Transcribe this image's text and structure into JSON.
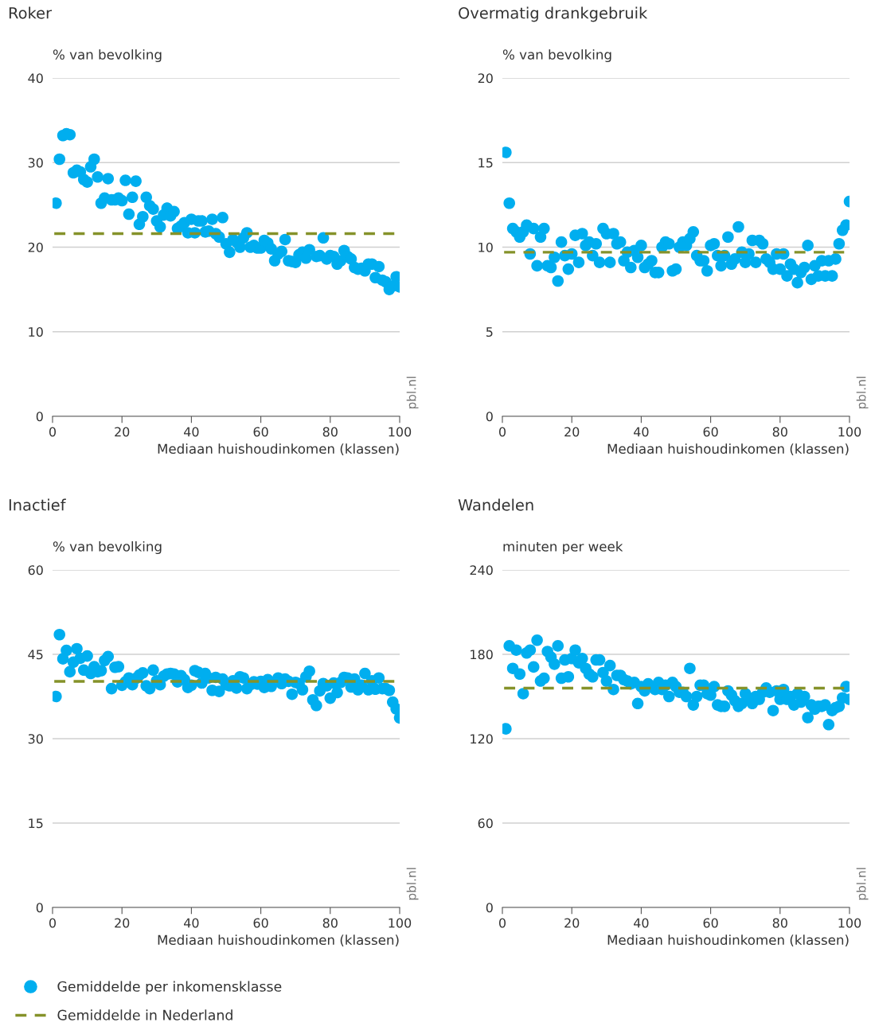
{
  "chart_data": [
    {
      "type": "scatter",
      "title": "Roker",
      "ylabel": "% van bevolking",
      "xlabel": "Mediaan huishoudinkomen (klassen)",
      "xlim": [
        0,
        100
      ],
      "xticks": [
        0,
        20,
        40,
        60,
        80,
        100
      ],
      "ylim": [
        0,
        40
      ],
      "yticks": [
        0,
        10,
        20,
        30,
        40
      ],
      "grid": "y",
      "marker": "circle",
      "legend": "bottom",
      "x": [
        1,
        2,
        3,
        4,
        5,
        6,
        7,
        8,
        9,
        10,
        11,
        12,
        13,
        14,
        15,
        16,
        17,
        18,
        19,
        20,
        21,
        22,
        23,
        24,
        25,
        26,
        27,
        28,
        29,
        30,
        31,
        32,
        33,
        34,
        35,
        36,
        37,
        38,
        39,
        40,
        41,
        42,
        43,
        44,
        45,
        46,
        47,
        48,
        49,
        50,
        51,
        52,
        53,
        54,
        55,
        56,
        57,
        58,
        59,
        60,
        61,
        62,
        63,
        64,
        65,
        66,
        67,
        68,
        69,
        70,
        71,
        72,
        73,
        74,
        75,
        76,
        77,
        78,
        79,
        80,
        81,
        82,
        83,
        84,
        85,
        86,
        87,
        88,
        89,
        90,
        91,
        92,
        93,
        94,
        95,
        96,
        97,
        98,
        99,
        100
      ],
      "series": [
        {
          "name": "Gemiddelde per inkomensklasse",
          "color": "#00aeef",
          "values": [
            25.2,
            30.4,
            33.2,
            33.4,
            33.3,
            28.8,
            29.1,
            28.9,
            28.0,
            27.7,
            29.5,
            30.4,
            28.3,
            25.2,
            25.8,
            28.1,
            25.6,
            25.6,
            25.8,
            25.5,
            27.9,
            23.9,
            25.9,
            27.8,
            22.7,
            23.6,
            25.9,
            24.9,
            24.5,
            23.1,
            22.4,
            23.8,
            24.6,
            23.7,
            24.2,
            22.2,
            22.5,
            22.9,
            21.7,
            23.3,
            21.7,
            23.1,
            23.1,
            21.8,
            21.9,
            23.3,
            21.6,
            21.2,
            23.5,
            20.4,
            19.4,
            20.9,
            20.6,
            20.0,
            21.1,
            21.7,
            20.0,
            20.2,
            19.9,
            19.9,
            20.8,
            20.5,
            19.8,
            18.4,
            19.2,
            19.5,
            20.9,
            18.4,
            18.3,
            18.2,
            19.1,
            19.4,
            18.7,
            19.7,
            null,
            18.9,
            19.0,
            21.1,
            18.6,
            19.0,
            18.9,
            18.0,
            18.4,
            19.6,
            18.9,
            18.6,
            17.6,
            17.4,
            17.5,
            17.2,
            18.0,
            18.0,
            16.4,
            17.7,
            16.1,
            15.9,
            15.0,
            15.4,
            16.5,
            15.3
          ]
        }
      ],
      "ref_lines": [
        {
          "axis": "y",
          "value": 21.6,
          "label": "Gemiddelde in Nederland",
          "color": "#85922a",
          "line_style": "dashed"
        }
      ],
      "annotations": [
        "pbl.nl"
      ]
    },
    {
      "type": "scatter",
      "title": "Overmatig drankgebruik",
      "ylabel": "% van bevolking",
      "xlabel": "Mediaan huishoudinkomen (klassen)",
      "xlim": [
        0,
        100
      ],
      "xticks": [
        0,
        20,
        40,
        60,
        80,
        100
      ],
      "ylim": [
        0,
        20
      ],
      "yticks": [
        0,
        5,
        10,
        15,
        20
      ],
      "grid": "y",
      "marker": "circle",
      "x": [
        1,
        2,
        3,
        4,
        5,
        6,
        7,
        8,
        9,
        10,
        11,
        12,
        13,
        14,
        15,
        16,
        17,
        18,
        19,
        20,
        21,
        22,
        23,
        24,
        25,
        26,
        27,
        28,
        29,
        30,
        31,
        32,
        33,
        34,
        35,
        36,
        37,
        38,
        39,
        40,
        41,
        42,
        43,
        44,
        45,
        46,
        47,
        48,
        49,
        50,
        51,
        52,
        53,
        54,
        55,
        56,
        57,
        58,
        59,
        60,
        61,
        62,
        63,
        64,
        65,
        66,
        67,
        68,
        69,
        70,
        71,
        72,
        73,
        74,
        75,
        76,
        77,
        78,
        79,
        80,
        81,
        82,
        83,
        84,
        85,
        86,
        87,
        88,
        89,
        90,
        91,
        92,
        93,
        94,
        95,
        96,
        97,
        98,
        99,
        100
      ],
      "series": [
        {
          "color": "#00aeef",
          "values": [
            15.6,
            12.6,
            11.1,
            10.9,
            10.6,
            10.9,
            11.3,
            9.6,
            11.1,
            8.9,
            10.6,
            11.1,
            8.9,
            8.8,
            9.4,
            8.0,
            10.3,
            9.5,
            8.7,
            9.6,
            10.7,
            9.1,
            10.8,
            10.1,
            10.3,
            9.5,
            10.2,
            9.1,
            11.1,
            10.8,
            9.1,
            10.8,
            10.2,
            10.3,
            9.2,
            9.7,
            8.8,
            9.8,
            9.4,
            10.1,
            8.8,
            9.0,
            9.2,
            8.5,
            8.5,
            10.0,
            10.3,
            10.2,
            8.6,
            8.7,
            10.0,
            10.3,
            10.1,
            10.5,
            10.9,
            9.5,
            9.2,
            9.2,
            8.6,
            10.1,
            10.2,
            9.5,
            8.9,
            9.5,
            10.6,
            9.0,
            9.3,
            11.2,
            9.7,
            9.1,
            9.6,
            10.4,
            9.1,
            10.4,
            10.2,
            9.3,
            9.1,
            8.7,
            9.6,
            8.7,
            9.6,
            8.3,
            9.0,
            8.7,
            7.9,
            8.5,
            8.8,
            10.1,
            8.1,
            8.9,
            8.3,
            9.2,
            8.3,
            9.2,
            8.3,
            9.3,
            10.2,
            11.0,
            11.3,
            12.7
          ]
        }
      ],
      "ref_lines": [
        {
          "axis": "y",
          "value": 9.7,
          "color": "#85922a",
          "line_style": "dashed"
        }
      ],
      "annotations": [
        "pbl.nl"
      ]
    },
    {
      "type": "scatter",
      "title": "Inactief",
      "ylabel": "% van bevolking",
      "xlabel": "Mediaan huishoudinkomen (klassen)",
      "xlim": [
        0,
        100
      ],
      "xticks": [
        0,
        20,
        40,
        60,
        80,
        100
      ],
      "ylim": [
        0,
        60
      ],
      "yticks": [
        0,
        15,
        30,
        45,
        60
      ],
      "grid": "y",
      "marker": "circle",
      "x": [
        1,
        2,
        3,
        4,
        5,
        6,
        7,
        8,
        9,
        10,
        11,
        12,
        13,
        14,
        15,
        16,
        17,
        18,
        19,
        20,
        21,
        22,
        23,
        24,
        25,
        26,
        27,
        28,
        29,
        30,
        31,
        32,
        33,
        34,
        35,
        36,
        37,
        38,
        39,
        40,
        41,
        42,
        43,
        44,
        45,
        46,
        47,
        48,
        49,
        50,
        51,
        52,
        53,
        54,
        55,
        56,
        57,
        58,
        59,
        60,
        61,
        62,
        63,
        64,
        65,
        66,
        67,
        68,
        69,
        70,
        71,
        72,
        73,
        74,
        75,
        76,
        77,
        78,
        79,
        80,
        81,
        82,
        83,
        84,
        85,
        86,
        87,
        88,
        89,
        90,
        91,
        92,
        93,
        94,
        95,
        96,
        97,
        98,
        99,
        100
      ],
      "series": [
        {
          "color": "#00aeef",
          "values": [
            37.5,
            48.5,
            44.2,
            45.7,
            41.9,
            43.6,
            46.0,
            44.3,
            42.2,
            44.7,
            41.6,
            42.8,
            41.9,
            42.1,
            43.9,
            44.6,
            38.9,
            42.7,
            42.8,
            39.5,
            40.1,
            40.8,
            39.6,
            40.7,
            41.3,
            41.7,
            39.4,
            38.9,
            42.2,
            40.3,
            39.6,
            41.1,
            41.5,
            41.6,
            41.5,
            40.1,
            41.2,
            40.5,
            39.1,
            39.5,
            42.1,
            41.8,
            39.9,
            41.6,
            40.8,
            38.6,
            40.9,
            38.4,
            40.6,
            39.6,
            39.4,
            40.3,
            39.0,
            41.0,
            40.8,
            38.9,
            39.6,
            40.1,
            39.7,
            40.2,
            39.1,
            40.5,
            39.3,
            null,
            40.8,
            39.8,
            40.6,
            40.2,
            37.9,
            40.0,
            39.8,
            38.7,
            41.0,
            42.0,
            36.9,
            35.9,
            38.5,
            39.8,
            39.4,
            37.2,
            39.9,
            38.2,
            40.0,
            40.9,
            40.8,
            39.2,
            40.6,
            38.7,
            39.5,
            41.6,
            38.7,
            40.3,
            38.8,
            40.8,
            38.9,
            38.9,
            38.6,
            36.5,
            35.3,
            33.7
          ]
        }
      ],
      "ref_lines": [
        {
          "axis": "y",
          "value": 40.2,
          "color": "#85922a",
          "line_style": "dashed"
        }
      ],
      "annotations": [
        "pbl.nl"
      ]
    },
    {
      "type": "scatter",
      "title": "Wandelen",
      "ylabel": "minuten per week",
      "xlabel": "Mediaan huishoudinkomen (klassen)",
      "xlim": [
        0,
        100
      ],
      "xticks": [
        0,
        20,
        40,
        60,
        80,
        100
      ],
      "ylim": [
        0,
        240
      ],
      "yticks": [
        0,
        60,
        120,
        180,
        240
      ],
      "grid": "y",
      "marker": "circle",
      "x": [
        1,
        2,
        3,
        4,
        5,
        6,
        7,
        8,
        9,
        10,
        11,
        12,
        13,
        14,
        15,
        16,
        17,
        18,
        19,
        20,
        21,
        22,
        23,
        24,
        25,
        26,
        27,
        28,
        29,
        30,
        31,
        32,
        33,
        34,
        35,
        36,
        37,
        38,
        39,
        40,
        41,
        42,
        43,
        44,
        45,
        46,
        47,
        48,
        49,
        50,
        51,
        52,
        53,
        54,
        55,
        56,
        57,
        58,
        59,
        60,
        61,
        62,
        63,
        64,
        65,
        66,
        67,
        68,
        69,
        70,
        71,
        72,
        73,
        74,
        75,
        76,
        77,
        78,
        79,
        80,
        81,
        82,
        83,
        84,
        85,
        86,
        87,
        88,
        89,
        90,
        91,
        92,
        93,
        94,
        95,
        96,
        97,
        98,
        99,
        100
      ],
      "series": [
        {
          "color": "#00aeef",
          "values": [
            127,
            186,
            170,
            183,
            166,
            152,
            181,
            183,
            171,
            190,
            161,
            163,
            182,
            178,
            173,
            186,
            163,
            176,
            164,
            177,
            183,
            174,
            177,
            170,
            166,
            164,
            176,
            176,
            167,
            161,
            172,
            155,
            165,
            165,
            162,
            161,
            159,
            160,
            145,
            157,
            154,
            159,
            null,
            155,
            160,
            155,
            158,
            150,
            160,
            157,
            153,
            153,
            150,
            170,
            144,
            150,
            158,
            158,
            152,
            151,
            157,
            144,
            143,
            143,
            154,
            151,
            147,
            143,
            145,
            152,
            149,
            145,
            150,
            148,
            153,
            156,
            153,
            140,
            154,
            148,
            155,
            148,
            150,
            144,
            152,
            146,
            150,
            135,
            144,
            141,
            143,
            143,
            144,
            130,
            140,
            142,
            143,
            149,
            157,
            148
          ]
        }
      ],
      "ref_lines": [
        {
          "axis": "y",
          "value": 156,
          "color": "#85922a",
          "line_style": "dashed"
        }
      ],
      "annotations": [
        "pbl.nl"
      ]
    }
  ]
}
